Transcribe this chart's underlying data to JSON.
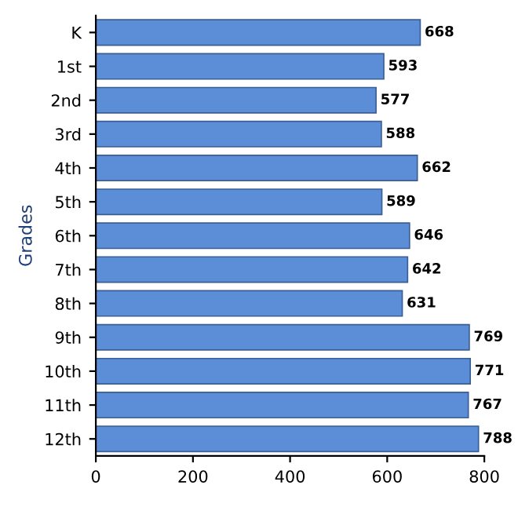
{
  "chart_data": {
    "type": "bar",
    "orientation": "horizontal",
    "ylabel": "Grades",
    "categories": [
      "K",
      "1st",
      "2nd",
      "3rd",
      "4th",
      "5th",
      "6th",
      "7th",
      "8th",
      "9th",
      "10th",
      "11th",
      "12th"
    ],
    "values": [
      668,
      593,
      577,
      588,
      662,
      589,
      646,
      642,
      631,
      769,
      771,
      767,
      788
    ],
    "color": "#5b8ed6",
    "xlim": [
      0,
      800
    ],
    "xticks": [
      0,
      200,
      400,
      600,
      800
    ],
    "data_labels": true,
    "grid": false,
    "legend": false
  }
}
